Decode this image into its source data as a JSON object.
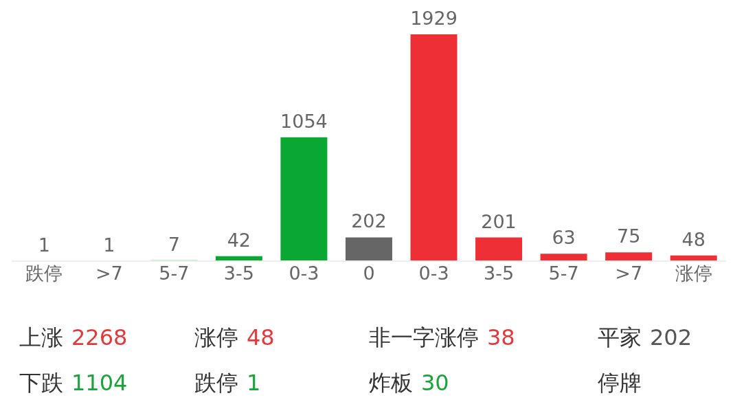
{
  "chart_data": {
    "type": "bar",
    "categories": [
      "跌停",
      ">7",
      "5-7",
      "3-5",
      "0-3",
      "0",
      "0-3",
      "3-5",
      "5-7",
      ">7",
      "涨停"
    ],
    "values": [
      1,
      1,
      7,
      42,
      1054,
      202,
      1929,
      201,
      63,
      75,
      48
    ],
    "colors": [
      "#0aa832",
      "#0aa832",
      "#0aa832",
      "#0aa832",
      "#0aa832",
      "#666666",
      "#ee2f35",
      "#ee2f35",
      "#ee2f35",
      "#ee2f35",
      "#ee2f35"
    ],
    "data_labels": true,
    "grid": false,
    "legend": false,
    "annotations": [
      "上涨 2268",
      "涨停 48",
      "非一字涨停 38",
      "平家 202",
      "下跌 1104",
      "跌停 1",
      "炸板 30",
      "停牌"
    ]
  }
}
